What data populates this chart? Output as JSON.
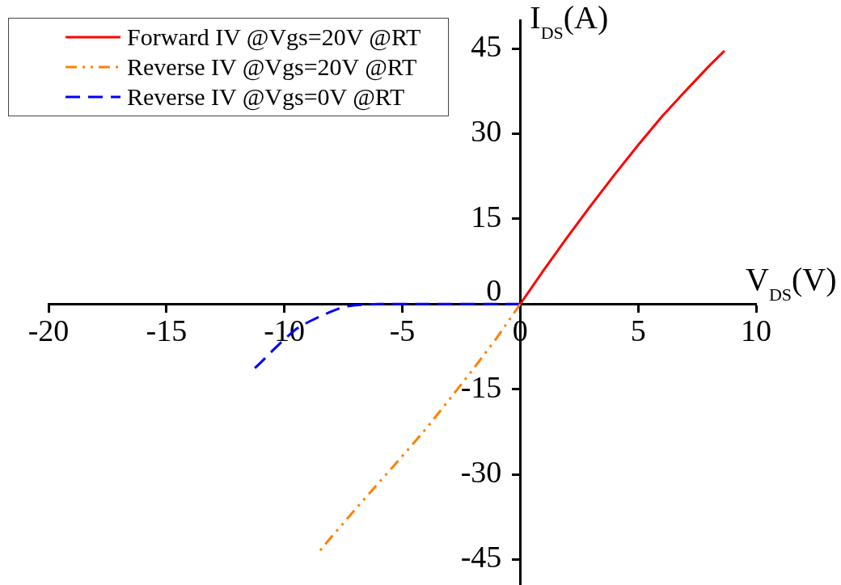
{
  "chart_data": {
    "type": "line",
    "xlabel": "V$_{DS}$(V)",
    "ylabel": "I$_{DS}$(A)",
    "xlim": [
      -20,
      10
    ],
    "xticks": [
      -20,
      -15,
      -10,
      -5,
      0,
      5,
      10
    ],
    "ylim": [
      -49.5,
      50
    ],
    "yticks": [
      -45,
      -30,
      -15,
      0,
      15,
      30,
      45
    ],
    "legend": "top left",
    "series": [
      {
        "name": "Forward IV @Vgs=20V @RT",
        "color": "#ff0000",
        "line_style": "solid",
        "x": [
          0,
          1,
          2,
          3,
          4,
          5,
          6,
          7,
          8,
          8.66
        ],
        "values": [
          0,
          6,
          11.8,
          17.4,
          22.8,
          28.0,
          33.0,
          37.5,
          41.9,
          44.6
        ]
      },
      {
        "name": "Reverse IV @Vgs=20V @RT",
        "color": "#ff8000",
        "line_style": "dashdotdot",
        "x": [
          0,
          -1,
          -2,
          -3,
          -4,
          -5,
          -6,
          -7,
          -8,
          -8.6
        ],
        "values": [
          0,
          -6,
          -11.5,
          -16.8,
          -22,
          -26.8,
          -31.5,
          -36.2,
          -41,
          -44
        ]
      },
      {
        "name": "Reverse IV @Vgs=0V @RT",
        "color": "#0000ff",
        "line_style": "dashed",
        "x": [
          0,
          -6,
          -7,
          -7.5,
          -8,
          -8.5,
          -9,
          -9.5,
          -10,
          -10.5,
          -11,
          -11.4
        ],
        "values": [
          0,
          0,
          -0.2,
          -0.5,
          -1.3,
          -2.2,
          -3.2,
          -4.4,
          -6.2,
          -8.2,
          -10.3,
          -11.9
        ]
      }
    ]
  }
}
